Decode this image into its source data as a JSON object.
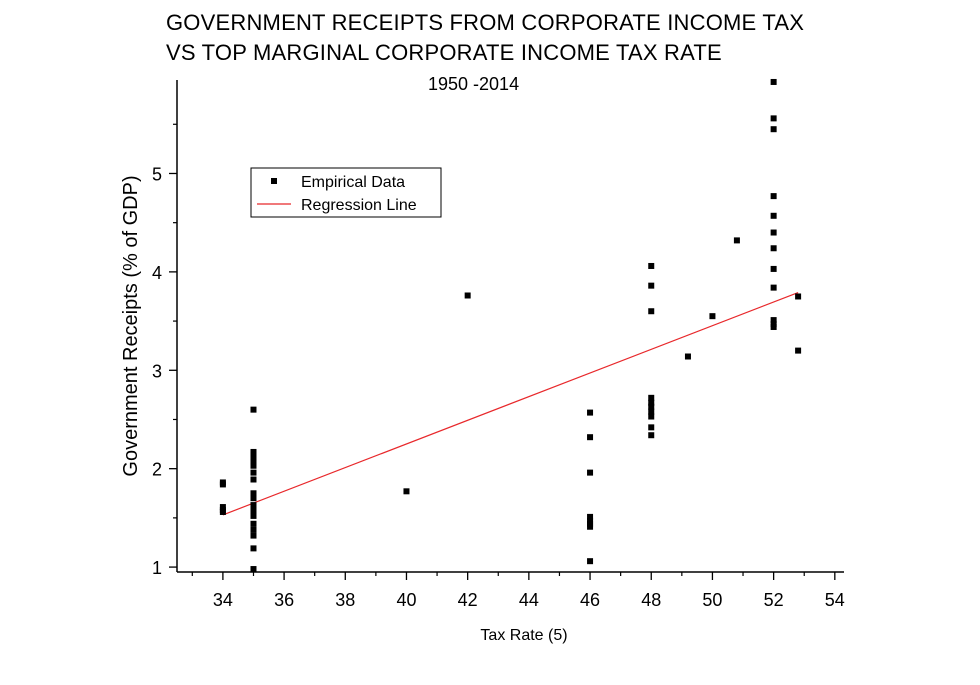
{
  "title_line1": "GOVERNMENT RECEIPTS FROM CORPORATE INCOME TAX",
  "title_line2": "VS TOP MARGINAL CORPORATE INCOME TAX RATE",
  "subtitle": "1950 -2014",
  "colors": {
    "points": "#000000",
    "regression": "#e8282b",
    "axis": "#000000"
  },
  "chart_data": {
    "type": "scatter",
    "title": "GOVERNMENT RECEIPTS FROM CORPORATE INCOME TAX VS TOP MARGINAL CORPORATE INCOME TAX RATE",
    "subtitle": "1950 -2014",
    "xlabel": "Tax Rate (5)",
    "ylabel": "Government Receipts (% of GDP)",
    "xlim": [
      32.5,
      54.3
    ],
    "ylim": [
      0.95,
      5.95
    ],
    "xticks": [
      34,
      36,
      38,
      40,
      42,
      44,
      46,
      48,
      50,
      52,
      54
    ],
    "yticks": [
      1,
      2,
      3,
      4,
      5
    ],
    "grid": false,
    "legend_position": "upper-left",
    "series": [
      {
        "name": "Empirical Data",
        "marker": "square",
        "points": [
          [
            34,
            1.86
          ],
          [
            34,
            1.84
          ],
          [
            34,
            1.61
          ],
          [
            34,
            1.58
          ],
          [
            34,
            1.56
          ],
          [
            35,
            2.6
          ],
          [
            35,
            2.17
          ],
          [
            35,
            2.14
          ],
          [
            35,
            2.11
          ],
          [
            35,
            2.07
          ],
          [
            35,
            2.03
          ],
          [
            35,
            1.96
          ],
          [
            35,
            1.89
          ],
          [
            35,
            1.75
          ],
          [
            35,
            1.7
          ],
          [
            35,
            1.63
          ],
          [
            35,
            1.57
          ],
          [
            35,
            1.52
          ],
          [
            35,
            1.44
          ],
          [
            35,
            1.38
          ],
          [
            35,
            1.32
          ],
          [
            35,
            1.19
          ],
          [
            35,
            0.98
          ],
          [
            40,
            1.77
          ],
          [
            42,
            3.76
          ],
          [
            46,
            2.57
          ],
          [
            46,
            2.32
          ],
          [
            46,
            1.96
          ],
          [
            46,
            1.51
          ],
          [
            46,
            1.47
          ],
          [
            46,
            1.44
          ],
          [
            46,
            1.41
          ],
          [
            46,
            1.06
          ],
          [
            48,
            4.06
          ],
          [
            48,
            3.86
          ],
          [
            48,
            3.6
          ],
          [
            48,
            2.72
          ],
          [
            48,
            2.67
          ],
          [
            48,
            2.63
          ],
          [
            48,
            2.58
          ],
          [
            48,
            2.53
          ],
          [
            48,
            2.42
          ],
          [
            48,
            2.34
          ],
          [
            49.2,
            3.14
          ],
          [
            50,
            3.55
          ],
          [
            50.8,
            4.32
          ],
          [
            52,
            5.93
          ],
          [
            52,
            5.56
          ],
          [
            52,
            5.45
          ],
          [
            52,
            4.77
          ],
          [
            52,
            4.57
          ],
          [
            52,
            4.4
          ],
          [
            52,
            4.24
          ],
          [
            52,
            4.03
          ],
          [
            52,
            3.84
          ],
          [
            52,
            3.51
          ],
          [
            52,
            3.47
          ],
          [
            52,
            3.44
          ],
          [
            52.8,
            3.75
          ],
          [
            52.8,
            3.2
          ]
        ]
      },
      {
        "name": "Regression Line",
        "line": [
          [
            34,
            1.53
          ],
          [
            52.8,
            3.79
          ]
        ]
      }
    ]
  }
}
